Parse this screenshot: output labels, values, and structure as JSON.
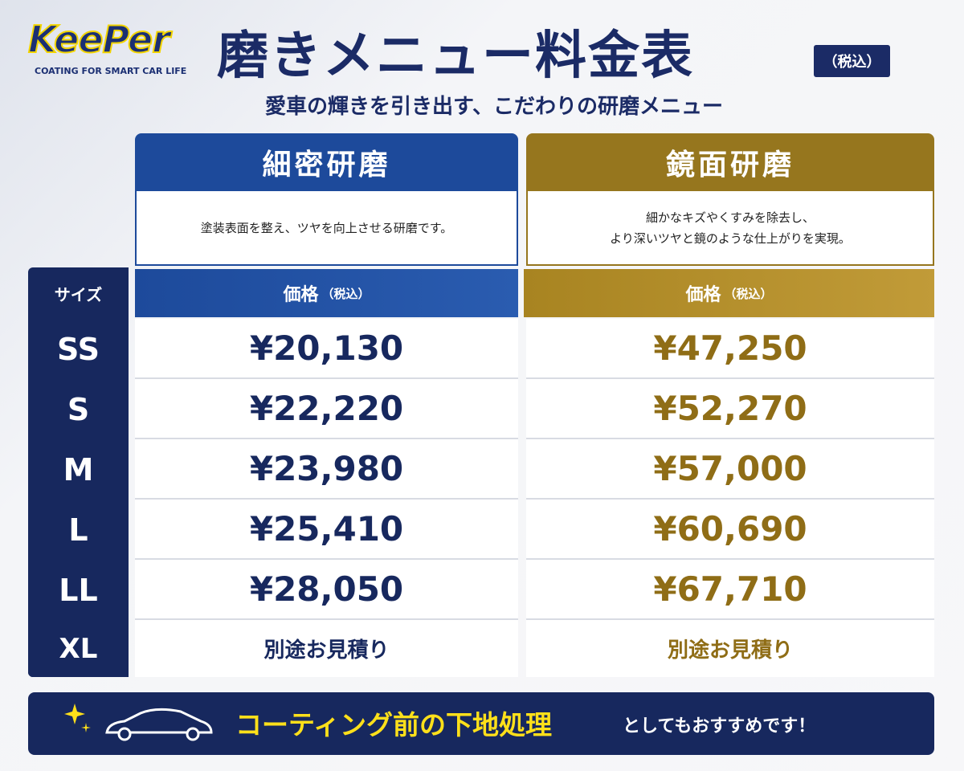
{
  "header": {
    "logo": "KeePer",
    "logo_tagline": "COATING FOR SMART CAR LIFE",
    "title": "磨きメニュー料金表",
    "tax_badge": "（税込）",
    "subtitle": "愛車の輝きを引き出す、こだわりの研磨メニュー"
  },
  "table": {
    "size_header": "サイズ",
    "columns": [
      {
        "name": "細密研磨",
        "description": [
          "塗装表面を整え、ツヤを向上させる研磨です。"
        ],
        "price_header": "価格",
        "price_note": "（税込）"
      },
      {
        "name": "鏡面研磨",
        "description": [
          "細かなキズやくすみを除去し、",
          "より深いツヤと鏡のような仕上がりを実現。"
        ],
        "price_header": "価格",
        "price_note": "（税込）"
      }
    ],
    "rows": [
      [
        "SS",
        "¥20,130",
        "¥47,250"
      ],
      [
        "S",
        "¥22,220",
        "¥52,270"
      ],
      [
        "M",
        "¥23,980",
        "¥57,000"
      ],
      [
        "L",
        "¥25,410",
        "¥60,690"
      ],
      [
        "LL",
        "¥28,050",
        "¥67,710"
      ],
      [
        "XL",
        "別途お見積り",
        "別途お見積り"
      ]
    ]
  },
  "footer": {
    "highlight": "コーティング前の下地処理",
    "text": "としてもおすすめです！"
  }
}
